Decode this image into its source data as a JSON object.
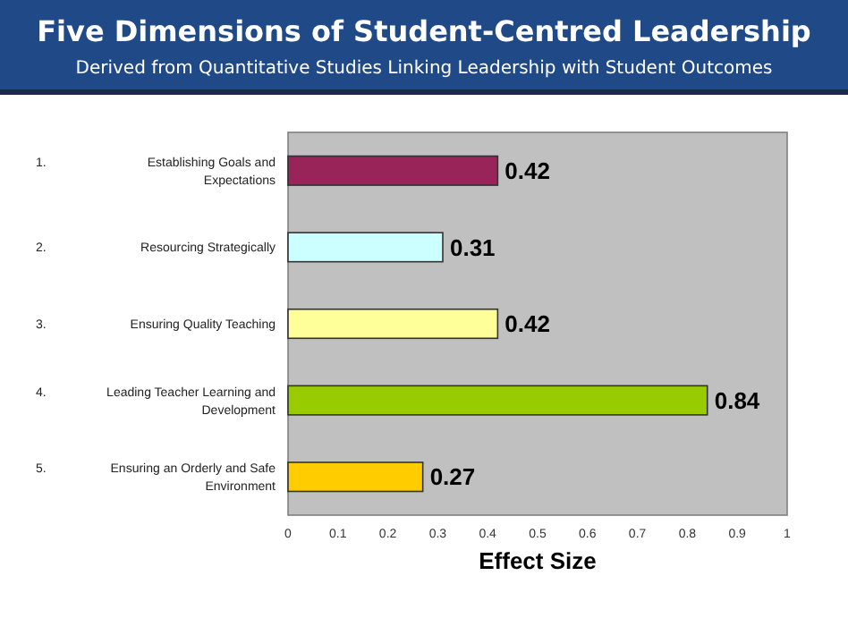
{
  "chart_data": {
    "type": "bar",
    "orientation": "horizontal",
    "title": "Five Dimensions of Student-Centred Leadership",
    "subtitle": "Derived from Quantitative Studies Linking Leadership with Student Outcomes",
    "xlabel": "Effect Size",
    "categories": [
      "1. Establishing Goals and Expectations",
      "2. Resourcing Strategically",
      "3. Ensuring Quality Teaching",
      "4. Leading Teacher Learning and Development",
      "5. Ensuring an Orderly and Safe Environment"
    ],
    "values": [
      0.42,
      0.31,
      0.42,
      0.84,
      0.27
    ],
    "colors": [
      "#99245a",
      "#ccffff",
      "#ffff99",
      "#99cc00",
      "#ffcc00"
    ],
    "xlim": [
      0,
      1
    ],
    "xticks": [
      0,
      0.1,
      0.2,
      0.3,
      0.4,
      0.5,
      0.6,
      0.7,
      0.8,
      0.9,
      1
    ],
    "data_labels": true
  }
}
